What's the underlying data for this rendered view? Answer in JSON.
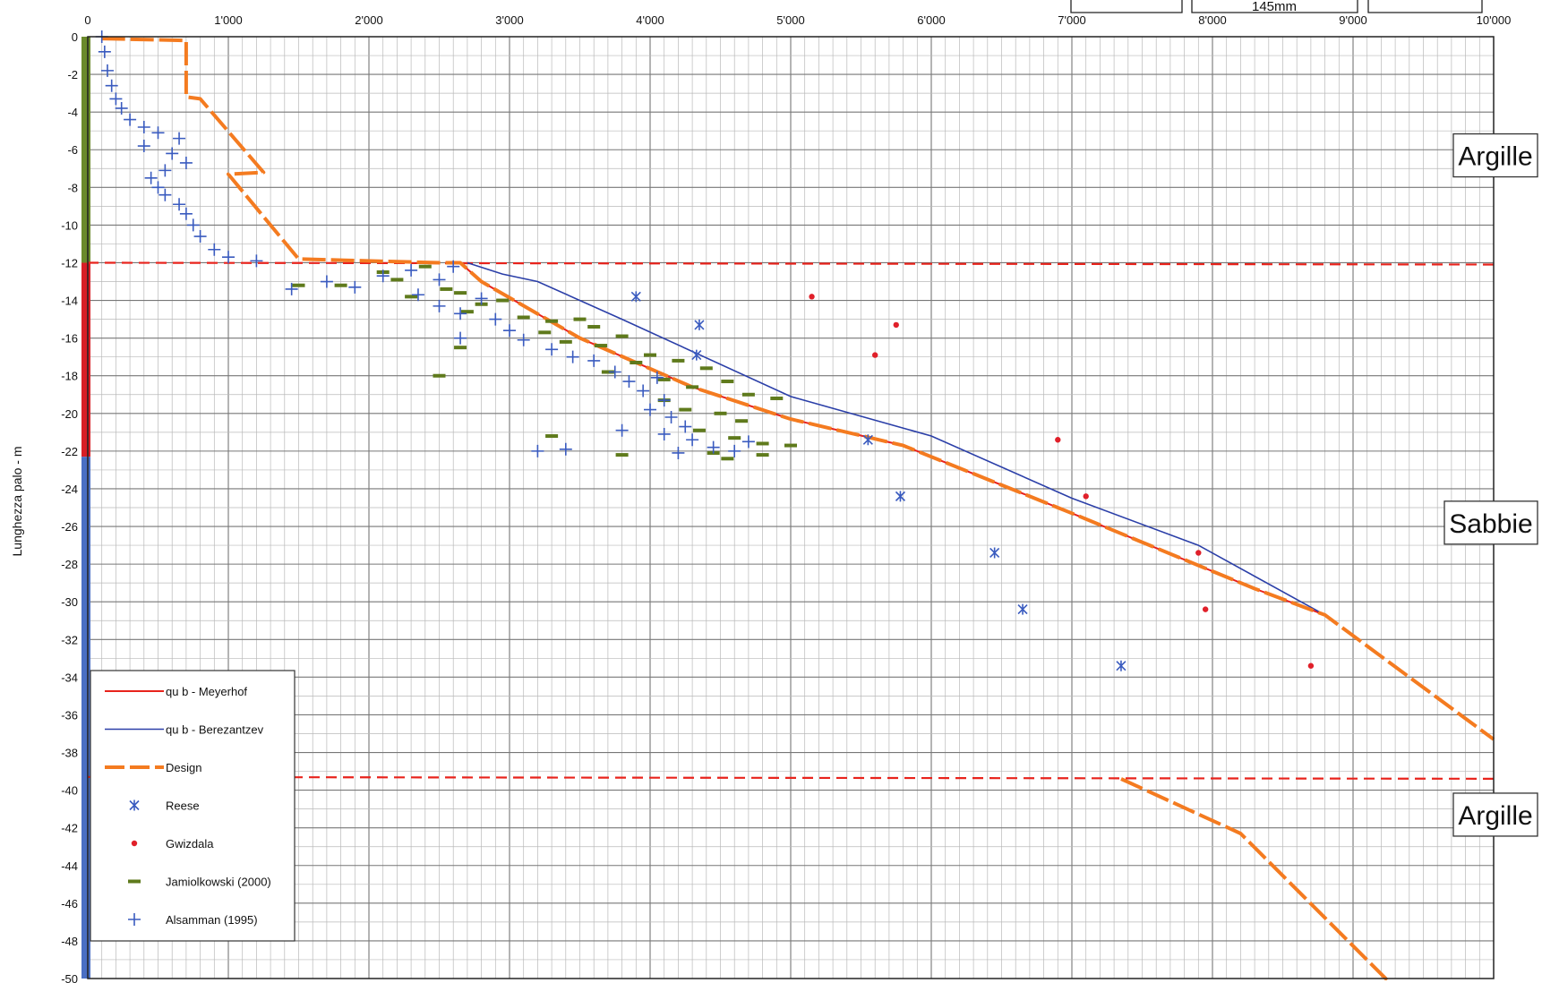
{
  "chart_data": {
    "type": "scatter",
    "ylabel": "Lunghezza palo - m",
    "xlim": [
      0,
      10000
    ],
    "ylim": [
      -50,
      0
    ],
    "grid": true,
    "legend_position": "bottom-left",
    "x_ticks": [
      0,
      1000,
      2000,
      3000,
      4000,
      5000,
      6000,
      7000,
      8000,
      9000,
      10000
    ],
    "x_tick_labels": [
      "0",
      "1'000",
      "2'000",
      "3'000",
      "4'000",
      "5'000",
      "6'000",
      "7'000",
      "8'000",
      "9'000",
      "10'000"
    ],
    "y_ticks": [
      0,
      -2,
      -4,
      -6,
      -8,
      -10,
      -12,
      -14,
      -16,
      -18,
      -20,
      -22,
      -24,
      -26,
      -28,
      -30,
      -32,
      -34,
      -36,
      -38,
      -40,
      -42,
      -44,
      -46,
      -48,
      -50
    ],
    "top_box_label": "145mm",
    "colors": {
      "meyerhof": "#e8231c",
      "berezantzev": "#2b3fa8",
      "design": "#f47b20",
      "reese": "#3a5bbf",
      "gwizdala": "#e0202a",
      "jamiolkowski": "#5f7a1c",
      "alsamman": "#3a5bbf",
      "layer_line": "#e8231c",
      "clay_bar": "#6b8a2c",
      "sand_bar": "#4a6fc4",
      "sand_bar_red": "#d81f26"
    },
    "layer_boundaries": [
      -12,
      -39.3
    ],
    "zones": [
      {
        "label": "Argille",
        "y": -6.3
      },
      {
        "label": "Sabbie",
        "y": -25.8
      },
      {
        "label": "Argille",
        "y": -41.3
      }
    ],
    "series": [
      {
        "name": "qu b  - Meyerhof",
        "kind": "line",
        "points": [
          [
            2650,
            -12
          ],
          [
            2800,
            -13
          ],
          [
            3500,
            -16
          ],
          [
            4300,
            -18.6
          ],
          [
            5000,
            -20.3
          ],
          [
            5800,
            -21.7
          ],
          [
            7000,
            -25.3
          ],
          [
            8300,
            -29.3
          ],
          [
            8800,
            -30.7
          ]
        ]
      },
      {
        "name": "qu b  - Berezantzev",
        "kind": "line",
        "points": [
          [
            2700,
            -12
          ],
          [
            2950,
            -12.6
          ],
          [
            3200,
            -13
          ],
          [
            3800,
            -15
          ],
          [
            5000,
            -19.1
          ],
          [
            6000,
            -21.2
          ],
          [
            7000,
            -24.5
          ],
          [
            7900,
            -27
          ],
          [
            8800,
            -30.7
          ]
        ]
      },
      {
        "name": "Design",
        "kind": "line",
        "segments": [
          [
            [
              100,
              -0.1
            ],
            [
              700,
              -0.2
            ],
            [
              700,
              -3.2
            ],
            [
              800,
              -3.3
            ],
            [
              1250,
              -7.2
            ],
            [
              1000,
              -7.3
            ],
            [
              1500,
              -11.8
            ],
            [
              2500,
              -12
            ],
            [
              2650,
              -12
            ],
            [
              2800,
              -13
            ],
            [
              3500,
              -16
            ],
            [
              4300,
              -18.6
            ],
            [
              5000,
              -20.3
            ],
            [
              5800,
              -21.7
            ],
            [
              7000,
              -25.3
            ],
            [
              8300,
              -29.3
            ],
            [
              8800,
              -30.7
            ],
            [
              10000,
              -37.3
            ]
          ],
          [
            [
              7350,
              -39.4
            ],
            [
              8200,
              -42.3
            ],
            [
              9500,
              -52.0
            ]
          ]
        ]
      },
      {
        "name": "Reese",
        "kind": "scatter",
        "marker": "asterisk",
        "points": [
          [
            3900,
            -13.8
          ],
          [
            4350,
            -15.3
          ],
          [
            4330,
            -16.9
          ],
          [
            5550,
            -21.4
          ],
          [
            5780,
            -24.4
          ],
          [
            6450,
            -27.4
          ],
          [
            6650,
            -30.4
          ],
          [
            7350,
            -33.4
          ]
        ]
      },
      {
        "name": "Gwizdala",
        "kind": "scatter",
        "marker": "dot",
        "points": [
          [
            5150,
            -13.8
          ],
          [
            5750,
            -15.3
          ],
          [
            5600,
            -16.9
          ],
          [
            6900,
            -21.4
          ],
          [
            7100,
            -24.4
          ],
          [
            7900,
            -27.4
          ],
          [
            7950,
            -30.4
          ],
          [
            8700,
            -33.4
          ]
        ]
      },
      {
        "name": "Jamiolkowski (2000)",
        "kind": "scatter",
        "marker": "dash",
        "points": [
          [
            1500,
            -13.2
          ],
          [
            1800,
            -13.2
          ],
          [
            2100,
            -12.5
          ],
          [
            2200,
            -12.9
          ],
          [
            2400,
            -12.2
          ],
          [
            2300,
            -13.8
          ],
          [
            2550,
            -13.4
          ],
          [
            2650,
            -13.6
          ],
          [
            2800,
            -14.2
          ],
          [
            2700,
            -14.6
          ],
          [
            2950,
            -14.0
          ],
          [
            3100,
            -14.9
          ],
          [
            3300,
            -15.1
          ],
          [
            3500,
            -15.0
          ],
          [
            3600,
            -15.4
          ],
          [
            3800,
            -15.9
          ],
          [
            3250,
            -15.7
          ],
          [
            3400,
            -16.2
          ],
          [
            3650,
            -16.4
          ],
          [
            4000,
            -16.9
          ],
          [
            3900,
            -17.3
          ],
          [
            4200,
            -17.2
          ],
          [
            4400,
            -17.6
          ],
          [
            3700,
            -17.8
          ],
          [
            4100,
            -18.2
          ],
          [
            4300,
            -18.6
          ],
          [
            4550,
            -18.3
          ],
          [
            4700,
            -19.0
          ],
          [
            4900,
            -19.2
          ],
          [
            4100,
            -19.3
          ],
          [
            4250,
            -19.8
          ],
          [
            4500,
            -20.0
          ],
          [
            4650,
            -20.4
          ],
          [
            4350,
            -20.9
          ],
          [
            4600,
            -21.3
          ],
          [
            4800,
            -21.6
          ],
          [
            5000,
            -21.7
          ],
          [
            4800,
            -22.2
          ],
          [
            4550,
            -22.4
          ],
          [
            4450,
            -22.1
          ],
          [
            3800,
            -22.2
          ],
          [
            3300,
            -21.2
          ],
          [
            2650,
            -16.5
          ],
          [
            2500,
            -18.0
          ]
        ]
      },
      {
        "name": "Alsamman (1995)",
        "kind": "scatter",
        "marker": "plus",
        "points": [
          [
            100,
            0
          ],
          [
            120,
            -0.8
          ],
          [
            140,
            -1.8
          ],
          [
            170,
            -2.6
          ],
          [
            200,
            -3.3
          ],
          [
            240,
            -3.8
          ],
          [
            300,
            -4.4
          ],
          [
            400,
            -4.8
          ],
          [
            500,
            -5.1
          ],
          [
            650,
            -5.4
          ],
          [
            400,
            -5.8
          ],
          [
            600,
            -6.2
          ],
          [
            700,
            -6.7
          ],
          [
            550,
            -7.1
          ],
          [
            450,
            -7.5
          ],
          [
            500,
            -8.0
          ],
          [
            550,
            -8.4
          ],
          [
            650,
            -8.9
          ],
          [
            700,
            -9.4
          ],
          [
            750,
            -10.0
          ],
          [
            800,
            -10.6
          ],
          [
            900,
            -11.3
          ],
          [
            1000,
            -11.7
          ],
          [
            1200,
            -11.9
          ],
          [
            1450,
            -13.4
          ],
          [
            1700,
            -13.0
          ],
          [
            1900,
            -13.3
          ],
          [
            2100,
            -12.7
          ],
          [
            2300,
            -12.4
          ],
          [
            2500,
            -12.9
          ],
          [
            2600,
            -12.2
          ],
          [
            2350,
            -13.7
          ],
          [
            2500,
            -14.3
          ],
          [
            2650,
            -14.7
          ],
          [
            2900,
            -15.0
          ],
          [
            3000,
            -15.6
          ],
          [
            3100,
            -16.1
          ],
          [
            3300,
            -16.6
          ],
          [
            3450,
            -17.0
          ],
          [
            3600,
            -17.2
          ],
          [
            3750,
            -17.8
          ],
          [
            3850,
            -18.3
          ],
          [
            4050,
            -18.1
          ],
          [
            3950,
            -18.8
          ],
          [
            4100,
            -19.3
          ],
          [
            4000,
            -19.8
          ],
          [
            4150,
            -20.2
          ],
          [
            4250,
            -20.7
          ],
          [
            3800,
            -20.9
          ],
          [
            4100,
            -21.1
          ],
          [
            4300,
            -21.4
          ],
          [
            4450,
            -21.8
          ],
          [
            4600,
            -22.0
          ],
          [
            4200,
            -22.1
          ],
          [
            3200,
            -22.0
          ],
          [
            3400,
            -21.9
          ],
          [
            4700,
            -21.5
          ],
          [
            2800,
            -13.9
          ],
          [
            2650,
            -16.0
          ]
        ]
      }
    ]
  },
  "legend": {
    "items": [
      {
        "label": "qu b  - Meyerhof",
        "symbol": "line-red"
      },
      {
        "label": "qu b  - Berezantzev",
        "symbol": "line-blue"
      },
      {
        "label": "Design",
        "symbol": "dash-orange"
      },
      {
        "label": "Reese",
        "symbol": "asterisk"
      },
      {
        "label": "Gwizdala",
        "symbol": "dot"
      },
      {
        "label": "Jamiolkowski (2000)",
        "symbol": "dash-green"
      },
      {
        "label": "Alsamman (1995)",
        "symbol": "plus"
      }
    ]
  }
}
